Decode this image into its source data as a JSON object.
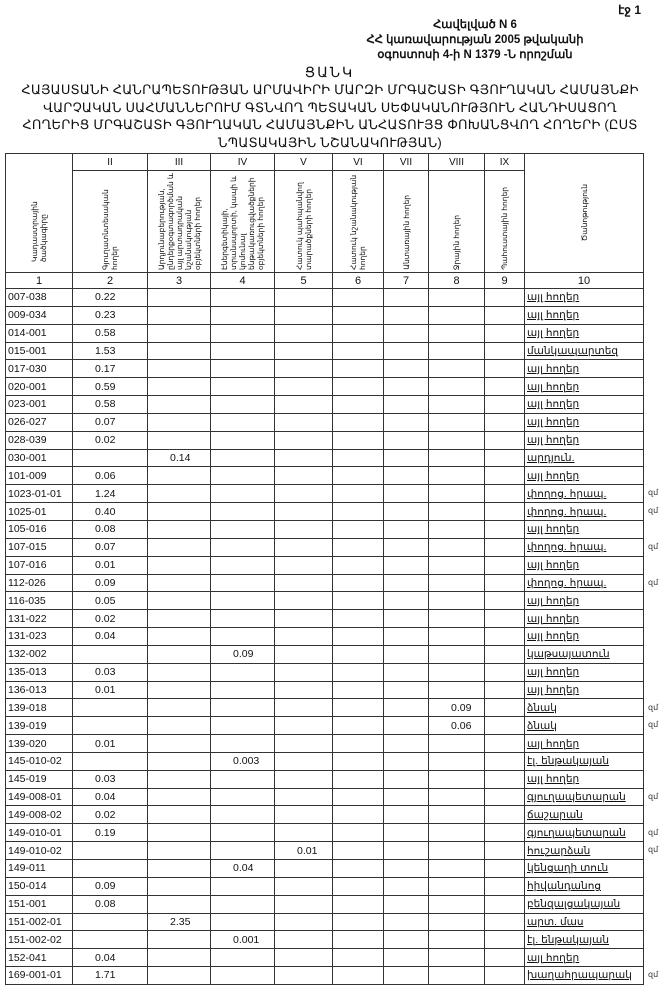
{
  "page_number": "էջ 1",
  "annex": {
    "line1": "Հավելված N 6",
    "line2": "ՀՀ կառավարության 2005 թվականի",
    "line3": "օգոստոսի 4-ի N 1379 -Ն որոշման"
  },
  "list_title": "ՑԱՆԿ",
  "doc_title": "ՀԱՅԱՍՏԱՆԻ ՀԱՆՐԱՊԵՏՈՒԹՅԱՆ ԱՐՄԱՎԻՐԻ ՄԱՐԶԻ ՄՐԳԱՇԱՏԻ ԳՅՈՒՂԱԿԱՆ ՀԱՄԱՅՆՔԻ ՎԱՐՉԱԿԱՆ ՍԱՀՄԱՆՆԵՐՈՒՄ ԳՏՆՎՈՂ ՊԵՏԱԿԱՆ ՍԵՓԱԿԱՆՈՒԹՅՈՒՆ ՀԱՆԴԻՍԱՑՈՂ ՀՈՂԵՐԻՑ ՄՐԳԱՇԱՏԻ ԳՅՈՒՂԱԿԱՆ ՀԱՄԱՅՆՔԻՆ ԱՆՀԱՏՈՒՅՑ ՓՈԽԱՆՑՎՈՂ ՀՈՂԵՐԻ (ԸՍՏ ՆՊԱՏԱԿԱՅԻՆ ՆՇԱՆԱԿՈՒԹՅԱՆ)",
  "table": {
    "roman": [
      "II",
      "III",
      "IV",
      "V",
      "VI",
      "VII",
      "VIII",
      "IX"
    ],
    "headers": [
      "Կադաստրային ծածկագիրը",
      "Գյուղատնտեսական հողեր",
      "Արդյունաբերության, ընդերքօգտագործման և այլ արտադրական նշանակության օբյեկտների հողեր",
      "Էներգետիկայի, տրանսպորտի, կապի և կոմունալ ենթակառուցվածքների օբյեկտների հողեր",
      "Հատուկ պահպանվող տարածքների հողեր",
      "Հատուկ նշանակության հողեր",
      "Անտառային հողեր",
      "Ջրային հողեր",
      "Պահուստային հողեր",
      "Ծանոթություն"
    ],
    "numbers": [
      "1",
      "2",
      "3",
      "4",
      "5",
      "6",
      "7",
      "8",
      "9",
      "10"
    ],
    "rows": [
      [
        "007-038",
        "0.22",
        "",
        "",
        "",
        "",
        "",
        "",
        "",
        "այլ հողեր",
        ""
      ],
      [
        "009-034",
        "0.23",
        "",
        "",
        "",
        "",
        "",
        "",
        "",
        "այլ հողեր",
        ""
      ],
      [
        "014-001",
        "0.58",
        "",
        "",
        "",
        "",
        "",
        "",
        "",
        "այլ հողեր",
        ""
      ],
      [
        "015-001",
        "1.53",
        "",
        "",
        "",
        "",
        "",
        "",
        "",
        "մանկապարտեզ",
        ""
      ],
      [
        "017-030",
        "0.17",
        "",
        "",
        "",
        "",
        "",
        "",
        "",
        "այլ հողեր",
        ""
      ],
      [
        "020-001",
        "0.59",
        "",
        "",
        "",
        "",
        "",
        "",
        "",
        "այլ հողեր",
        ""
      ],
      [
        "023-001",
        "0.58",
        "",
        "",
        "",
        "",
        "",
        "",
        "",
        "այլ հողեր",
        ""
      ],
      [
        "026-027",
        "0.07",
        "",
        "",
        "",
        "",
        "",
        "",
        "",
        "այլ հողեր",
        ""
      ],
      [
        "028-039",
        "0.02",
        "",
        "",
        "",
        "",
        "",
        "",
        "",
        "այլ հողեր",
        ""
      ],
      [
        "030-001",
        "",
        "0.14",
        "",
        "",
        "",
        "",
        "",
        "",
        "արդյուն.",
        ""
      ],
      [
        "101-009",
        "0.06",
        "",
        "",
        "",
        "",
        "",
        "",
        "",
        "այլ հողեր",
        ""
      ],
      [
        "1023-01-01",
        "1.24",
        "",
        "",
        "",
        "",
        "",
        "",
        "",
        "փողոց. հրապ.",
        "զմ"
      ],
      [
        "1025-01",
        "0.40",
        "",
        "",
        "",
        "",
        "",
        "",
        "",
        "փողոց. հրապ.",
        "զմ"
      ],
      [
        "105-016",
        "0.08",
        "",
        "",
        "",
        "",
        "",
        "",
        "",
        "այլ հողեր",
        ""
      ],
      [
        "107-015",
        "0.07",
        "",
        "",
        "",
        "",
        "",
        "",
        "",
        "փողոց. հրապ.",
        "զմ"
      ],
      [
        "107-016",
        "0.01",
        "",
        "",
        "",
        "",
        "",
        "",
        "",
        "այլ հողեր",
        ""
      ],
      [
        "112-026",
        "0.09",
        "",
        "",
        "",
        "",
        "",
        "",
        "",
        "փողոց. հրապ.",
        "զմ"
      ],
      [
        "116-035",
        "0.05",
        "",
        "",
        "",
        "",
        "",
        "",
        "",
        "այլ հողեր",
        ""
      ],
      [
        "131-022",
        "0.02",
        "",
        "",
        "",
        "",
        "",
        "",
        "",
        "այլ հողեր",
        ""
      ],
      [
        "131-023",
        "0.04",
        "",
        "",
        "",
        "",
        "",
        "",
        "",
        "այլ հողեր",
        ""
      ],
      [
        "132-002",
        "",
        "",
        "0.09",
        "",
        "",
        "",
        "",
        "",
        "կաթսայատուն",
        ""
      ],
      [
        "135-013",
        "0.03",
        "",
        "",
        "",
        "",
        "",
        "",
        "",
        "այլ հողեր",
        ""
      ],
      [
        "136-013",
        "0.01",
        "",
        "",
        "",
        "",
        "",
        "",
        "",
        "այլ հողեր",
        ""
      ],
      [
        "139-018",
        "",
        "",
        "",
        "",
        "",
        "",
        "0.09",
        "",
        "ձնակ",
        "զմ"
      ],
      [
        "139-019",
        "",
        "",
        "",
        "",
        "",
        "",
        "0.06",
        "",
        "ձնակ",
        "զմ"
      ],
      [
        "139-020",
        "0.01",
        "",
        "",
        "",
        "",
        "",
        "",
        "",
        "այլ հողեր",
        ""
      ],
      [
        "145-010-02",
        "",
        "",
        "0.003",
        "",
        "",
        "",
        "",
        "",
        "էլ. ենթակայան",
        ""
      ],
      [
        "145-019",
        "0.03",
        "",
        "",
        "",
        "",
        "",
        "",
        "",
        "այլ հողեր",
        ""
      ],
      [
        "149-008-01",
        "0.04",
        "",
        "",
        "",
        "",
        "",
        "",
        "",
        "գյուղապետարան",
        "զմ"
      ],
      [
        "149-008-02",
        "0.02",
        "",
        "",
        "",
        "",
        "",
        "",
        "",
        "ճաշարան",
        ""
      ],
      [
        "149-010-01",
        "0.19",
        "",
        "",
        "",
        "",
        "",
        "",
        "",
        "գյուղապետարան",
        "զմ"
      ],
      [
        "149-010-02",
        "",
        "",
        "",
        "0.01",
        "",
        "",
        "",
        "",
        "հուշարձան",
        "զմ"
      ],
      [
        "149-011",
        "",
        "",
        "0.04",
        "",
        "",
        "",
        "",
        "",
        "կենցաղի տուն",
        ""
      ],
      [
        "150-014",
        "0.09",
        "",
        "",
        "",
        "",
        "",
        "",
        "",
        "հիվանդանոց",
        ""
      ],
      [
        "151-001",
        "0.08",
        "",
        "",
        "",
        "",
        "",
        "",
        "",
        "բենզալցակայան",
        ""
      ],
      [
        "151-002-01",
        "",
        "2.35",
        "",
        "",
        "",
        "",
        "",
        "",
        "արտ. մաս",
        ""
      ],
      [
        "151-002-02",
        "",
        "",
        "0.001",
        "",
        "",
        "",
        "",
        "",
        "էլ. ենթակայան",
        ""
      ],
      [
        "152-041",
        "0.04",
        "",
        "",
        "",
        "",
        "",
        "",
        "",
        "այլ հողեր",
        ""
      ],
      [
        "169-001-01",
        "1.71",
        "",
        "",
        "",
        "",
        "",
        "",
        "",
        "խաղահրապարակ",
        "զմ"
      ]
    ]
  }
}
